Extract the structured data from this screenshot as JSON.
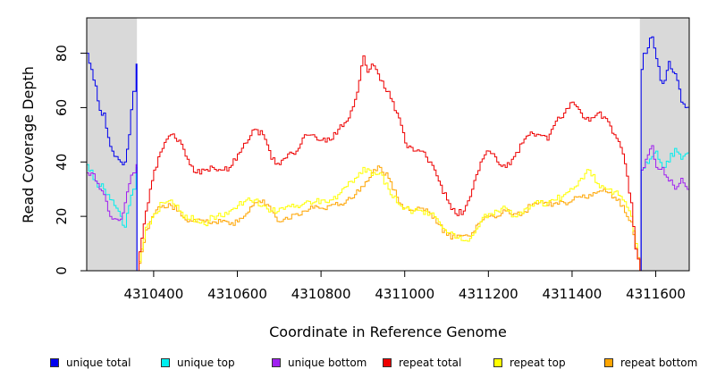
{
  "chart_data": {
    "type": "line",
    "title": "",
    "xlabel": "Coordinate in Reference Genome",
    "ylabel": "Read Coverage Depth",
    "xlim": [
      4310240,
      4311680
    ],
    "ylim": [
      0,
      93
    ],
    "x_ticks": [
      4310400,
      4310600,
      4310800,
      4311000,
      4311200,
      4311400,
      4311600
    ],
    "x_tick_labels": [
      "4310400",
      "4310600",
      "4310800",
      "4311000",
      "4311200",
      "4311400",
      "4311600"
    ],
    "y_ticks": [
      0,
      20,
      40,
      60,
      80
    ],
    "y_tick_labels": [
      "0",
      "20",
      "40",
      "60",
      "80"
    ],
    "shaded_regions": [
      [
        4310240,
        4310360
      ],
      [
        4311562,
        4311680
      ]
    ],
    "legend_position": "bottom",
    "series": [
      {
        "name": "unique total",
        "color": "#0000ee",
        "x": [
          4310240,
          4310250,
          4310260,
          4310270,
          4310280,
          4310290,
          4310300,
          4310310,
          4310320,
          4310330,
          4310340,
          4310350,
          4310358,
          4310360,
          4310362,
          4311562,
          4311565,
          4311570,
          4311580,
          4311590,
          4311600,
          4311610,
          4311620,
          4311630,
          4311640,
          4311650,
          4311660,
          4311670,
          4311680
        ],
        "values": [
          80,
          74,
          68,
          59,
          58,
          49,
          44,
          42,
          40,
          40,
          50,
          66,
          76,
          0,
          0,
          0,
          74,
          80,
          82,
          86,
          78,
          70,
          70,
          77,
          73,
          70,
          62,
          60,
          61
        ]
      },
      {
        "name": "unique top",
        "color": "#00eeee",
        "x": [
          4310240,
          4310250,
          4310260,
          4310270,
          4310280,
          4310290,
          4310300,
          4310310,
          4310320,
          4310330,
          4310340,
          4310350,
          4310358,
          4310360,
          4310362,
          4311562,
          4311565,
          4311575,
          4311590,
          4311600,
          4311615,
          4311630,
          4311645,
          4311660,
          4311670,
          4311680
        ],
        "values": [
          39,
          37,
          33,
          31,
          30,
          28,
          26,
          23,
          20,
          16,
          24,
          30,
          38,
          0,
          0,
          0,
          37,
          40,
          42,
          44,
          38,
          40,
          45,
          41,
          43,
          42
        ]
      },
      {
        "name": "unique bottom",
        "color": "#a020f0",
        "x": [
          4310240,
          4310250,
          4310260,
          4310270,
          4310280,
          4310290,
          4310300,
          4310310,
          4310320,
          4310330,
          4310340,
          4310350,
          4310358,
          4310360,
          4310362,
          4311562,
          4311565,
          4311575,
          4311590,
          4311600,
          4311615,
          4311630,
          4311645,
          4311660,
          4311670,
          4311680
        ],
        "values": [
          36,
          36,
          33,
          30,
          28,
          22,
          19,
          19,
          19,
          25,
          32,
          36,
          39,
          0,
          0,
          0,
          37,
          41,
          46,
          38,
          38,
          33,
          30,
          34,
          31,
          30
        ]
      },
      {
        "name": "repeat total",
        "color": "#ee0000",
        "x": [
          4310360,
          4310370,
          4310380,
          4310390,
          4310400,
          4310420,
          4310440,
          4310460,
          4310480,
          4310500,
          4310520,
          4310540,
          4310560,
          4310580,
          4310600,
          4310620,
          4310640,
          4310660,
          4310680,
          4310700,
          4310720,
          4310740,
          4310760,
          4310780,
          4310800,
          4310820,
          4310840,
          4310860,
          4310880,
          4310890,
          4310900,
          4310910,
          4310920,
          4310930,
          4310940,
          4310960,
          4310980,
          4311000,
          4311020,
          4311040,
          4311060,
          4311080,
          4311100,
          4311120,
          4311140,
          4311160,
          4311180,
          4311200,
          4311220,
          4311240,
          4311260,
          4311280,
          4311300,
          4311320,
          4311340,
          4311360,
          4311380,
          4311400,
          4311420,
          4311440,
          4311460,
          4311480,
          4311500,
          4311520,
          4311540,
          4311550,
          4311562
        ],
        "values": [
          0,
          12,
          22,
          30,
          37,
          45,
          50,
          48,
          41,
          36,
          37,
          38,
          37,
          38,
          43,
          47,
          52,
          50,
          41,
          39,
          43,
          44,
          50,
          50,
          48,
          48,
          52,
          55,
          63,
          70,
          79,
          73,
          76,
          74,
          70,
          66,
          58,
          47,
          44,
          44,
          40,
          33,
          26,
          21,
          22,
          30,
          40,
          44,
          40,
          38,
          42,
          47,
          51,
          50,
          48,
          55,
          58,
          62,
          58,
          55,
          58,
          56,
          50,
          43,
          25,
          8,
          0
        ]
      },
      {
        "name": "repeat top",
        "color": "#ffff00",
        "x": [
          4310360,
          4310370,
          4310380,
          4310400,
          4310420,
          4310440,
          4310460,
          4310480,
          4310500,
          4310520,
          4310540,
          4310560,
          4310580,
          4310600,
          4310620,
          4310640,
          4310660,
          4310680,
          4310700,
          4310720,
          4310740,
          4310760,
          4310780,
          4310800,
          4310820,
          4310840,
          4310860,
          4310880,
          4310900,
          4310920,
          4310940,
          4310960,
          4310980,
          4311000,
          4311020,
          4311040,
          4311060,
          4311080,
          4311100,
          4311120,
          4311140,
          4311160,
          4311180,
          4311200,
          4311220,
          4311240,
          4311260,
          4311280,
          4311300,
          4311320,
          4311340,
          4311360,
          4311380,
          4311400,
          4311420,
          4311440,
          4311460,
          4311480,
          4311500,
          4311520,
          4311540,
          4311562
        ],
        "values": [
          0,
          8,
          16,
          21,
          25,
          26,
          22,
          19,
          19,
          17,
          20,
          20,
          22,
          24,
          26,
          26,
          24,
          22,
          23,
          24,
          24,
          25,
          25,
          26,
          26,
          28,
          31,
          34,
          38,
          35,
          36,
          30,
          25,
          23,
          22,
          22,
          21,
          18,
          14,
          12,
          11,
          13,
          18,
          21,
          22,
          23,
          20,
          21,
          24,
          25,
          25,
          26,
          28,
          30,
          34,
          37,
          32,
          30,
          29,
          26,
          20,
          0
        ]
      },
      {
        "name": "repeat bottom",
        "color": "#ffa500",
        "x": [
          4310360,
          4310370,
          4310380,
          4310400,
          4310420,
          4310440,
          4310460,
          4310480,
          4310500,
          4310520,
          4310540,
          4310560,
          4310580,
          4310600,
          4310620,
          4310640,
          4310660,
          4310680,
          4310700,
          4310720,
          4310740,
          4310760,
          4310780,
          4310800,
          4310820,
          4310840,
          4310860,
          4310880,
          4310900,
          4310920,
          4310940,
          4310960,
          4310980,
          4311000,
          4311020,
          4311040,
          4311060,
          4311080,
          4311100,
          4311120,
          4311140,
          4311160,
          4311180,
          4311200,
          4311220,
          4311240,
          4311260,
          4311280,
          4311300,
          4311320,
          4311340,
          4311360,
          4311380,
          4311400,
          4311420,
          4311440,
          4311460,
          4311480,
          4311500,
          4311520,
          4311540,
          4311562
        ],
        "values": [
          0,
          7,
          15,
          21,
          24,
          24,
          22,
          18,
          18,
          18,
          18,
          18,
          17,
          18,
          21,
          25,
          26,
          22,
          18,
          19,
          21,
          22,
          23,
          23,
          24,
          24,
          26,
          28,
          31,
          36,
          38,
          34,
          27,
          23,
          22,
          23,
          21,
          17,
          13,
          12,
          13,
          14,
          18,
          20,
          20,
          22,
          21,
          21,
          24,
          25,
          24,
          25,
          25,
          26,
          27,
          28,
          29,
          29,
          27,
          24,
          18,
          0
        ]
      }
    ]
  }
}
